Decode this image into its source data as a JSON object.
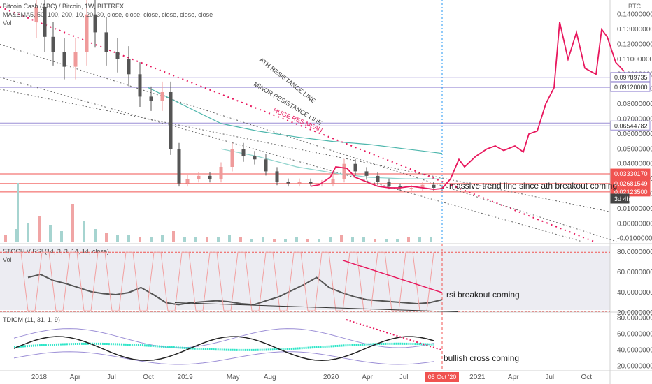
{
  "header": {
    "symbol_title": "Bitcoin Cash (ABC) / Bitcoin, 1W, BITTREX",
    "ma_line": "MA&EMA5, 50, 100, 200, 10, 20, 30, close, close, close, close, close, close",
    "vol_label": "Vol",
    "currency": "BTC"
  },
  "price_axis": {
    "ticks": [
      "0.14000000",
      "0.13000000",
      "0.12000000",
      "0.11000000",
      "0.10000000",
      "0.09000000",
      "0.08000000",
      "0.07000000",
      "0.06000000",
      "0.05000000",
      "0.04000000",
      "0.03000000",
      "0.02000000",
      "0.01000000",
      "0.00000000",
      "-0.01000000"
    ],
    "tags": [
      {
        "text": "0.09789735",
        "color": "#ffffff",
        "text_color": "#333333",
        "border": "#9c8fd6"
      },
      {
        "text": "0.09120000",
        "color": "#ffffff",
        "text_color": "#333333",
        "border": "#9c8fd6"
      },
      {
        "text": "0.06544782",
        "color": "#ffffff",
        "text_color": "#333333",
        "border": "#9c8fd6"
      },
      {
        "text": "0.03330170",
        "color": "#f05350",
        "text_color": "#ffffff",
        "border": "#f05350"
      },
      {
        "text": "0.02681549",
        "color": "#f05350",
        "text_color": "#ffffff",
        "border": "#f05350"
      },
      {
        "text": "0.02123500",
        "color": "#f05350",
        "text_color": "#ffffff",
        "border": "#f05350"
      },
      {
        "text": "3d 4h",
        "color": "#444444",
        "text_color": "#ffffff",
        "border": "#444444"
      }
    ]
  },
  "stoch": {
    "label": "STOCH V RSI (14, 3, 3, 14, 14, close)",
    "vol_label": "Vol",
    "ticks": [
      "80.00000000",
      "60.00000000",
      "40.00000000",
      "20.00000000"
    ]
  },
  "tdi": {
    "label": "TDIGM (11, 31, 1, 9)",
    "ticks": [
      "80.00000000",
      "60.00000000",
      "40.00000000",
      "20.00000000"
    ]
  },
  "time_axis": {
    "labels": [
      "2018",
      "Apr",
      "Jul",
      "Oct",
      "2019",
      "May",
      "Aug",
      "2020",
      "Apr",
      "Jul",
      "2021",
      "Apr",
      "Jul",
      "Oct"
    ],
    "cursor_label": "05 Oct '20"
  },
  "annotations": {
    "ath_resistance": "ATH RESISTANCE LINE",
    "minor_resistance": "MINOR RESISTANCE LINE",
    "huge_res_mean": "HUGE RES MEAN",
    "trend_breakout": "massive trend line since ath breakout coming",
    "rsi_breakout": "rsi breakout coming",
    "bullish_cross": "bullish cross coming"
  },
  "colors": {
    "bull": "#ef9a9a",
    "bear": "#555555",
    "projection": "#e8175d",
    "hline_red": "#f05350",
    "hline_purple": "#9c8fd6",
    "cursor": "#2196f3",
    "ma_teal": "#4db6ac",
    "tdi_aqua": "#2ee6c8"
  },
  "chart_data": {
    "type": "line",
    "title": "Bitcoin Cash (ABC) / Bitcoin, 1W, BITTREX",
    "ylabel": "BTC",
    "ylim": [
      -0.012,
      0.145
    ],
    "price_series": [
      {
        "d": "2017-12-04",
        "c": 0.135
      },
      {
        "d": "2017-12-25",
        "c": 0.145
      },
      {
        "d": "2018-01-15",
        "c": 0.125
      },
      {
        "d": "2018-02-05",
        "c": 0.115
      },
      {
        "d": "2018-03-05",
        "c": 0.105
      },
      {
        "d": "2018-04-02",
        "c": 0.115
      },
      {
        "d": "2018-04-30",
        "c": 0.14
      },
      {
        "d": "2018-05-21",
        "c": 0.128
      },
      {
        "d": "2018-06-18",
        "c": 0.115
      },
      {
        "d": "2018-07-16",
        "c": 0.11
      },
      {
        "d": "2018-08-13",
        "c": 0.1
      },
      {
        "d": "2018-09-10",
        "c": 0.085
      },
      {
        "d": "2018-10-08",
        "c": 0.082
      },
      {
        "d": "2018-11-05",
        "c": 0.088
      },
      {
        "d": "2018-11-26",
        "c": 0.05
      },
      {
        "d": "2018-12-17",
        "c": 0.027
      },
      {
        "d": "2019-01-07",
        "c": 0.03
      },
      {
        "d": "2019-02-04",
        "c": 0.032
      },
      {
        "d": "2019-03-04",
        "c": 0.03
      },
      {
        "d": "2019-04-01",
        "c": 0.038
      },
      {
        "d": "2019-04-29",
        "c": 0.05
      },
      {
        "d": "2019-05-27",
        "c": 0.045
      },
      {
        "d": "2019-06-24",
        "c": 0.043
      },
      {
        "d": "2019-07-22",
        "c": 0.035
      },
      {
        "d": "2019-08-19",
        "c": 0.028
      },
      {
        "d": "2019-09-16",
        "c": 0.027
      },
      {
        "d": "2019-10-14",
        "c": 0.028
      },
      {
        "d": "2019-11-11",
        "c": 0.027
      },
      {
        "d": "2019-12-09",
        "c": 0.027
      },
      {
        "d": "2020-01-06",
        "c": 0.03
      },
      {
        "d": "2020-02-03",
        "c": 0.04
      },
      {
        "d": "2020-03-02",
        "c": 0.035
      },
      {
        "d": "2020-03-30",
        "c": 0.032
      },
      {
        "d": "2020-04-27",
        "c": 0.028
      },
      {
        "d": "2020-05-25",
        "c": 0.025
      },
      {
        "d": "2020-06-22",
        "c": 0.024
      },
      {
        "d": "2020-07-20",
        "c": 0.024
      },
      {
        "d": "2020-08-17",
        "c": 0.026
      },
      {
        "d": "2020-09-14",
        "c": 0.024
      },
      {
        "d": "2020-10-05",
        "c": 0.0235
      }
    ],
    "series": [
      {
        "values": [
          {
            "d": "2019-11-11",
            "v": 0.025
          },
          {
            "d": "2019-12-02",
            "v": 0.026
          },
          {
            "d": "2019-12-30",
            "v": 0.031
          },
          {
            "d": "2020-01-13",
            "v": 0.038
          },
          {
            "d": "2020-02-10",
            "v": 0.037
          },
          {
            "d": "2020-03-02",
            "v": 0.031
          },
          {
            "d": "2020-03-30",
            "v": 0.028
          },
          {
            "d": "2020-04-27",
            "v": 0.025
          },
          {
            "d": "2020-05-25",
            "v": 0.024
          },
          {
            "d": "2020-06-22",
            "v": 0.024
          },
          {
            "d": "2020-07-20",
            "v": 0.025
          },
          {
            "d": "2020-08-17",
            "v": 0.024
          },
          {
            "d": "2020-09-14",
            "v": 0.023
          },
          {
            "d": "2020-10-05",
            "v": 0.0235
          },
          {
            "d": "2020-10-26",
            "v": 0.03
          },
          {
            "d": "2020-11-16",
            "v": 0.043
          },
          {
            "d": "2020-11-30",
            "v": 0.038
          },
          {
            "d": "2020-12-28",
            "v": 0.045
          },
          {
            "d": "2021-01-25",
            "v": 0.05
          },
          {
            "d": "2021-02-15",
            "v": 0.052
          },
          {
            "d": "2021-03-08",
            "v": 0.049
          },
          {
            "d": "2021-04-05",
            "v": 0.052
          },
          {
            "d": "2021-04-26",
            "v": 0.048
          },
          {
            "d": "2021-05-10",
            "v": 0.06
          },
          {
            "d": "2021-05-31",
            "v": 0.062
          },
          {
            "d": "2021-06-21",
            "v": 0.08
          },
          {
            "d": "2021-07-12",
            "v": 0.091
          },
          {
            "d": "2021-07-26",
            "v": 0.135
          },
          {
            "d": "2021-08-16",
            "v": 0.11
          },
          {
            "d": "2021-09-06",
            "v": 0.128
          },
          {
            "d": "2021-09-27",
            "v": 0.104
          },
          {
            "d": "2021-10-18",
            "v": 0.101
          },
          {
            "d": "2021-10-25",
            "v": 0.1
          },
          {
            "d": "2021-11-08",
            "v": 0.13
          },
          {
            "d": "2021-11-22",
            "v": 0.125
          },
          {
            "d": "2021-12-13",
            "v": 0.108
          },
          {
            "d": "2022-01-03",
            "v": 0.102
          }
        ]
      }
    ],
    "horizontal_levels": [
      0.09789735,
      0.0912,
      0.06544782,
      0.0333017,
      0.02681549,
      0.021235
    ],
    "stoch_rsi": {
      "ylim": [
        20,
        85
      ],
      "k_values": [
        55,
        58,
        52,
        49,
        45,
        41,
        39,
        38,
        40,
        45,
        38,
        30,
        28,
        30,
        31,
        32,
        31,
        29,
        28,
        32,
        36,
        42,
        48,
        55,
        45,
        40,
        36,
        33,
        32,
        31,
        30,
        29,
        30,
        33
      ]
    },
    "tdi": {
      "ylim": [
        15,
        85
      ]
    }
  }
}
